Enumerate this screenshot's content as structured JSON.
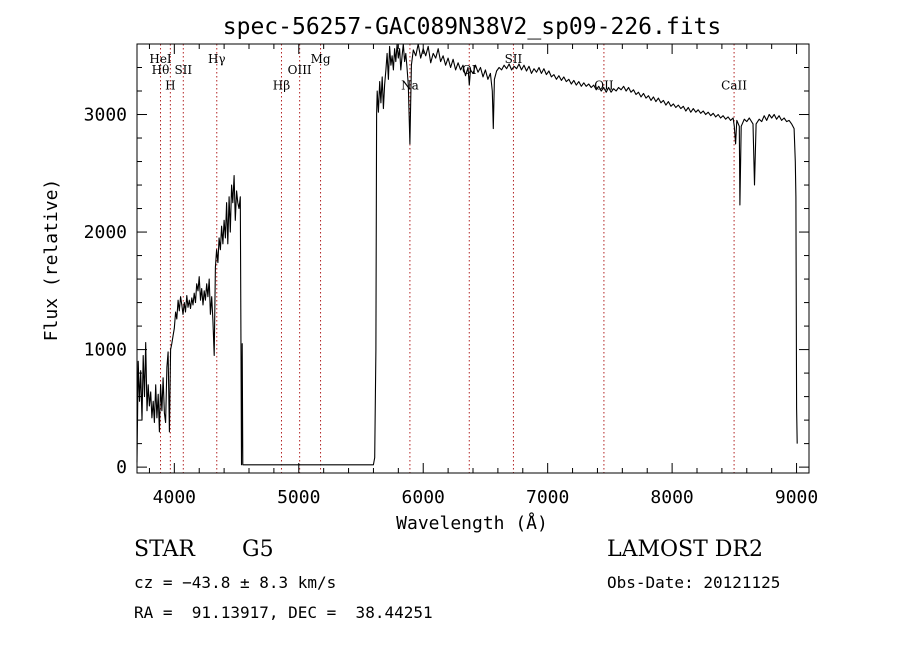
{
  "chart_data": {
    "type": "line",
    "title": "spec-56257-GAC089N38V2_sp09-226.fits",
    "xlabel": "Wavelength (Å)",
    "ylabel": "Flux (relative)",
    "xlim": [
      3700,
      9100
    ],
    "ylim": [
      -50,
      3600
    ],
    "xticks": [
      {
        "v": 4000,
        "label": "4000"
      },
      {
        "v": 5000,
        "label": "5000"
      },
      {
        "v": 6000,
        "label": "6000"
      },
      {
        "v": 7000,
        "label": "7000"
      },
      {
        "v": 8000,
        "label": "8000"
      },
      {
        "v": 9000,
        "label": "9000"
      }
    ],
    "yticks": [
      {
        "v": 0,
        "label": "0"
      },
      {
        "v": 1000,
        "label": "1000"
      },
      {
        "v": 2000,
        "label": "2000"
      },
      {
        "v": 3000,
        "label": "3000"
      }
    ],
    "line_color": "#000000",
    "marker_color": "#b22222",
    "lines": [
      {
        "w": 3889,
        "label": "HeI",
        "y": 3440
      },
      {
        "w": 3889,
        "label": "Hθ",
        "y": 3345
      },
      {
        "w": 3968,
        "label": "H",
        "y": 3215
      },
      {
        "w": 4072,
        "label": "SII",
        "y": 3345
      },
      {
        "w": 4341,
        "label": "Hγ",
        "y": 3440
      },
      {
        "w": 4861,
        "label": "Hβ",
        "y": 3215
      },
      {
        "w": 5007,
        "label": "OIII",
        "y": 3345
      },
      {
        "w": 5175,
        "label": "Mg",
        "y": 3440
      },
      {
        "w": 5893,
        "label": "Na",
        "y": 3215
      },
      {
        "w": 6370,
        "label": "OI",
        "y": 3345
      },
      {
        "w": 6725,
        "label": "SII",
        "y": 3440
      },
      {
        "w": 7452,
        "label": "OII",
        "y": 3215
      },
      {
        "w": 8498,
        "label": "CaII",
        "y": 3215
      }
    ],
    "spectrum": [
      [
        3700,
        40
      ],
      [
        3710,
        900
      ],
      [
        3720,
        560
      ],
      [
        3730,
        820
      ],
      [
        3740,
        400
      ],
      [
        3750,
        950
      ],
      [
        3760,
        600
      ],
      [
        3770,
        1060
      ],
      [
        3780,
        480
      ],
      [
        3790,
        700
      ],
      [
        3800,
        520
      ],
      [
        3810,
        640
      ],
      [
        3820,
        420
      ],
      [
        3830,
        560
      ],
      [
        3840,
        380
      ],
      [
        3850,
        700
      ],
      [
        3860,
        420
      ],
      [
        3870,
        620
      ],
      [
        3880,
        300
      ],
      [
        3890,
        700
      ],
      [
        3900,
        480
      ],
      [
        3910,
        760
      ],
      [
        3920,
        460
      ],
      [
        3930,
        380
      ],
      [
        3940,
        850
      ],
      [
        3950,
        980
      ],
      [
        3960,
        300
      ],
      [
        3970,
        1000
      ],
      [
        3980,
        1050
      ],
      [
        3990,
        1120
      ],
      [
        4000,
        1180
      ],
      [
        4010,
        1320
      ],
      [
        4020,
        1260
      ],
      [
        4030,
        1420
      ],
      [
        4040,
        1330
      ],
      [
        4050,
        1450
      ],
      [
        4060,
        1380
      ],
      [
        4070,
        1300
      ],
      [
        4080,
        1400
      ],
      [
        4090,
        1320
      ],
      [
        4100,
        1460
      ],
      [
        4110,
        1360
      ],
      [
        4120,
        1420
      ],
      [
        4130,
        1350
      ],
      [
        4140,
        1440
      ],
      [
        4150,
        1380
      ],
      [
        4160,
        1480
      ],
      [
        4170,
        1400
      ],
      [
        4180,
        1560
      ],
      [
        4190,
        1500
      ],
      [
        4200,
        1620
      ],
      [
        4210,
        1420
      ],
      [
        4220,
        1520
      ],
      [
        4230,
        1380
      ],
      [
        4240,
        1500
      ],
      [
        4250,
        1420
      ],
      [
        4260,
        1560
      ],
      [
        4270,
        1450
      ],
      [
        4280,
        1600
      ],
      [
        4290,
        1300
      ],
      [
        4300,
        1450
      ],
      [
        4310,
        1250
      ],
      [
        4320,
        950
      ],
      [
        4330,
        1700
      ],
      [
        4340,
        1850
      ],
      [
        4350,
        1740
      ],
      [
        4360,
        1950
      ],
      [
        4370,
        1850
      ],
      [
        4380,
        2050
      ],
      [
        4390,
        1900
      ],
      [
        4400,
        2100
      ],
      [
        4410,
        1950
      ],
      [
        4420,
        2250
      ],
      [
        4430,
        1900
      ],
      [
        4440,
        2300
      ],
      [
        4450,
        2000
      ],
      [
        4460,
        2400
      ],
      [
        4470,
        2250
      ],
      [
        4480,
        2480
      ],
      [
        4490,
        2100
      ],
      [
        4500,
        2350
      ],
      [
        4510,
        2250
      ],
      [
        4520,
        2200
      ],
      [
        4530,
        2300
      ],
      [
        4540,
        20
      ],
      [
        4545,
        1050
      ],
      [
        4550,
        20
      ],
      [
        5600,
        20
      ],
      [
        5610,
        80
      ],
      [
        5620,
        1000
      ],
      [
        5625,
        3000
      ],
      [
        5630,
        3200
      ],
      [
        5640,
        3020
      ],
      [
        5650,
        3280
      ],
      [
        5660,
        3100
      ],
      [
        5670,
        3320
      ],
      [
        5680,
        3050
      ],
      [
        5690,
        3250
      ],
      [
        5700,
        3380
      ],
      [
        5710,
        3520
      ],
      [
        5720,
        3300
      ],
      [
        5730,
        3580
      ],
      [
        5740,
        3420
      ],
      [
        5750,
        3500
      ],
      [
        5760,
        3380
      ],
      [
        5770,
        3560
      ],
      [
        5780,
        3450
      ],
      [
        5790,
        3600
      ],
      [
        5800,
        3480
      ],
      [
        5810,
        3560
      ],
      [
        5820,
        3380
      ],
      [
        5830,
        3500
      ],
      [
        5840,
        3600
      ],
      [
        5850,
        3450
      ],
      [
        5860,
        3520
      ],
      [
        5870,
        3400
      ],
      [
        5880,
        3250
      ],
      [
        5893,
        2750
      ],
      [
        5905,
        3420
      ],
      [
        5920,
        3550
      ],
      [
        5940,
        3500
      ],
      [
        5960,
        3600
      ],
      [
        5980,
        3480
      ],
      [
        6000,
        3560
      ],
      [
        6020,
        3500
      ],
      [
        6040,
        3580
      ],
      [
        6060,
        3440
      ],
      [
        6080,
        3520
      ],
      [
        6100,
        3480
      ],
      [
        6120,
        3560
      ],
      [
        6140,
        3450
      ],
      [
        6160,
        3500
      ],
      [
        6180,
        3420
      ],
      [
        6200,
        3480
      ],
      [
        6220,
        3400
      ],
      [
        6240,
        3470
      ],
      [
        6260,
        3380
      ],
      [
        6280,
        3440
      ],
      [
        6300,
        3380
      ],
      [
        6320,
        3420
      ],
      [
        6340,
        3330
      ],
      [
        6360,
        3400
      ],
      [
        6370,
        3250
      ],
      [
        6380,
        3380
      ],
      [
        6400,
        3350
      ],
      [
        6420,
        3420
      ],
      [
        6440,
        3360
      ],
      [
        6460,
        3400
      ],
      [
        6480,
        3320
      ],
      [
        6500,
        3380
      ],
      [
        6520,
        3300
      ],
      [
        6540,
        3350
      ],
      [
        6555,
        3200
      ],
      [
        6563,
        2880
      ],
      [
        6572,
        3300
      ],
      [
        6590,
        3370
      ],
      [
        6610,
        3400
      ],
      [
        6630,
        3380
      ],
      [
        6650,
        3420
      ],
      [
        6670,
        3390
      ],
      [
        6690,
        3430
      ],
      [
        6710,
        3380
      ],
      [
        6730,
        3410
      ],
      [
        6750,
        3390
      ],
      [
        6770,
        3430
      ],
      [
        6790,
        3380
      ],
      [
        6810,
        3420
      ],
      [
        6830,
        3370
      ],
      [
        6850,
        3410
      ],
      [
        6870,
        3350
      ],
      [
        6890,
        3390
      ],
      [
        6910,
        3360
      ],
      [
        6930,
        3400
      ],
      [
        6950,
        3350
      ],
      [
        6970,
        3390
      ],
      [
        6990,
        3340
      ],
      [
        7010,
        3370
      ],
      [
        7030,
        3320
      ],
      [
        7050,
        3340
      ],
      [
        7070,
        3300
      ],
      [
        7090,
        3330
      ],
      [
        7110,
        3290
      ],
      [
        7130,
        3320
      ],
      [
        7150,
        3280
      ],
      [
        7170,
        3300
      ],
      [
        7190,
        3260
      ],
      [
        7210,
        3290
      ],
      [
        7230,
        3250
      ],
      [
        7250,
        3280
      ],
      [
        7270,
        3240
      ],
      [
        7290,
        3270
      ],
      [
        7310,
        3240
      ],
      [
        7330,
        3260
      ],
      [
        7350,
        3230
      ],
      [
        7370,
        3250
      ],
      [
        7390,
        3210
      ],
      [
        7410,
        3240
      ],
      [
        7430,
        3200
      ],
      [
        7450,
        3230
      ],
      [
        7470,
        3190
      ],
      [
        7490,
        3230
      ],
      [
        7510,
        3190
      ],
      [
        7530,
        3220
      ],
      [
        7550,
        3200
      ],
      [
        7570,
        3230
      ],
      [
        7590,
        3210
      ],
      [
        7610,
        3240
      ],
      [
        7630,
        3200
      ],
      [
        7650,
        3230
      ],
      [
        7670,
        3190
      ],
      [
        7690,
        3210
      ],
      [
        7710,
        3170
      ],
      [
        7730,
        3190
      ],
      [
        7750,
        3150
      ],
      [
        7770,
        3180
      ],
      [
        7790,
        3140
      ],
      [
        7810,
        3160
      ],
      [
        7830,
        3120
      ],
      [
        7850,
        3150
      ],
      [
        7870,
        3110
      ],
      [
        7890,
        3140
      ],
      [
        7910,
        3100
      ],
      [
        7930,
        3120
      ],
      [
        7950,
        3080
      ],
      [
        7970,
        3110
      ],
      [
        7990,
        3070
      ],
      [
        8010,
        3090
      ],
      [
        8030,
        3060
      ],
      [
        8050,
        3080
      ],
      [
        8070,
        3050
      ],
      [
        8090,
        3070
      ],
      [
        8110,
        3030
      ],
      [
        8130,
        3060
      ],
      [
        8150,
        3020
      ],
      [
        8170,
        3050
      ],
      [
        8190,
        3020
      ],
      [
        8210,
        3040
      ],
      [
        8230,
        3010
      ],
      [
        8250,
        3030
      ],
      [
        8270,
        3000
      ],
      [
        8290,
        3020
      ],
      [
        8310,
        2990
      ],
      [
        8330,
        3010
      ],
      [
        8350,
        2980
      ],
      [
        8370,
        3000
      ],
      [
        8390,
        2970
      ],
      [
        8410,
        2990
      ],
      [
        8430,
        2960
      ],
      [
        8450,
        2980
      ],
      [
        8470,
        2950
      ],
      [
        8490,
        2970
      ],
      [
        8500,
        2900
      ],
      [
        8510,
        2750
      ],
      [
        8520,
        2950
      ],
      [
        8540,
        2900
      ],
      [
        8545,
        2230
      ],
      [
        8555,
        2900
      ],
      [
        8580,
        2960
      ],
      [
        8600,
        2940
      ],
      [
        8620,
        2970
      ],
      [
        8650,
        2920
      ],
      [
        8662,
        2400
      ],
      [
        8675,
        2920
      ],
      [
        8700,
        2960
      ],
      [
        8720,
        2940
      ],
      [
        8740,
        2990
      ],
      [
        8760,
        2950
      ],
      [
        8780,
        3000
      ],
      [
        8800,
        2970
      ],
      [
        8820,
        3000
      ],
      [
        8840,
        2960
      ],
      [
        8860,
        2990
      ],
      [
        8880,
        2950
      ],
      [
        8900,
        2970
      ],
      [
        8920,
        2940
      ],
      [
        8940,
        2950
      ],
      [
        8960,
        2920
      ],
      [
        8980,
        2880
      ],
      [
        8990,
        2600
      ],
      [
        8995,
        2300
      ],
      [
        9000,
        500
      ],
      [
        9005,
        200
      ]
    ]
  },
  "info": {
    "class_label": "STAR",
    "subclass": "G5",
    "survey": "LAMOST DR2",
    "cz": "cz = −43.8 ± 8.3 km/s",
    "obs_date": "Obs-Date: 20121125",
    "coords": "RA =  91.13917, DEC =  38.44251"
  }
}
